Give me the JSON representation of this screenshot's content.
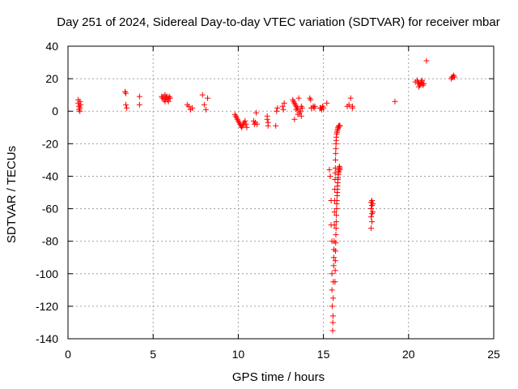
{
  "chart_data": {
    "type": "scatter",
    "title": "Day 251 of 2024, Sidereal Day-to-day VTEC variation (SDTVAR) for receiver mbar",
    "xlabel": "GPS time / hours",
    "ylabel": "SDTVAR / TECUs",
    "xlim": [
      0,
      25
    ],
    "ylim": [
      -140,
      40
    ],
    "xticks": [
      0,
      5,
      10,
      15,
      20,
      25
    ],
    "yticks": [
      40,
      20,
      0,
      -20,
      -40,
      -60,
      -80,
      -100,
      -120,
      -140
    ],
    "grid": true,
    "marker": "+",
    "marker_color": "#ff0000",
    "series": [
      {
        "name": "SDTVAR",
        "x": [
          0.6,
          0.6,
          0.65,
          0.65,
          0.7,
          0.7,
          0.7,
          0.75,
          3.35,
          3.4,
          3.4,
          3.45,
          4.2,
          4.2,
          5.5,
          5.55,
          5.6,
          5.65,
          5.7,
          5.75,
          5.8,
          5.85,
          5.9,
          5.95,
          6.0,
          5.7,
          5.9,
          7.0,
          7.1,
          7.2,
          7.3,
          7.9,
          8.0,
          8.1,
          8.2,
          9.8,
          9.85,
          9.9,
          9.95,
          10.0,
          10.05,
          10.1,
          10.15,
          10.2,
          10.25,
          10.3,
          10.35,
          10.4,
          10.45,
          10.5,
          10.9,
          10.95,
          11.0,
          11.05,
          11.1,
          11.7,
          11.7,
          11.75,
          11.75,
          12.2,
          12.25,
          12.3,
          12.6,
          12.65,
          12.7,
          13.2,
          13.25,
          13.3,
          13.35,
          13.4,
          13.45,
          13.5,
          13.55,
          13.6,
          13.65,
          13.7,
          13.75,
          13.3,
          13.4,
          13.5,
          13.7,
          14.2,
          14.25,
          14.3,
          14.3,
          14.4,
          14.45,
          14.5,
          14.8,
          14.85,
          14.9,
          14.95,
          15.0,
          15.2,
          15.35,
          15.4,
          15.45,
          15.45,
          15.5,
          15.5,
          15.5,
          15.52,
          15.54,
          15.55,
          15.56,
          15.57,
          15.58,
          15.6,
          15.61,
          15.62,
          15.63,
          15.64,
          15.65,
          15.66,
          15.67,
          15.68,
          15.69,
          15.7,
          15.71,
          15.72,
          15.73,
          15.74,
          15.75,
          15.76,
          15.78,
          15.8,
          15.82,
          15.84,
          15.86,
          15.88,
          15.9,
          15.92,
          15.94,
          15.95,
          15.96,
          15.97,
          15.68,
          15.69,
          15.7,
          15.71,
          15.72,
          15.73,
          15.74,
          15.75,
          15.76,
          15.77,
          15.78,
          15.79,
          15.8,
          15.81,
          15.82,
          15.83,
          15.84,
          15.85,
          15.86,
          15.87,
          15.88,
          15.89,
          15.9,
          15.91,
          15.92,
          15.93,
          15.94,
          15.95,
          15.96,
          15.97,
          16.4,
          16.5,
          16.6,
          16.7,
          16.7,
          17.8,
          17.8,
          17.8,
          17.8,
          17.85,
          17.85,
          17.85,
          17.85,
          17.9,
          17.9,
          19.2,
          20.4,
          20.5,
          20.55,
          20.6,
          20.65,
          20.7,
          20.75,
          20.8,
          20.85,
          20.9,
          20.6,
          20.8,
          21.05,
          22.5,
          22.55,
          22.6,
          22.65,
          22.7
        ],
        "y": [
          7,
          5,
          3,
          1,
          6,
          2,
          0,
          4,
          12,
          11,
          4,
          2,
          9,
          4,
          9,
          8,
          9,
          7,
          10,
          8,
          9,
          7,
          8,
          9,
          8,
          6,
          6,
          4,
          3,
          1,
          2,
          10,
          4,
          1,
          8,
          -2,
          -3,
          -4,
          -5,
          -6,
          -7,
          -8,
          -9,
          -10,
          -9,
          -8,
          -7,
          -6,
          -8,
          -10,
          -6,
          -8,
          -7,
          -1,
          -8,
          -3,
          -5,
          -7,
          -9,
          -9,
          0,
          2,
          3,
          1,
          5,
          7,
          6,
          5,
          4,
          3,
          2,
          1,
          8,
          -1,
          0,
          -3,
          2,
          -5,
          1,
          -2,
          3,
          8,
          7,
          2,
          2,
          3,
          2,
          3,
          2,
          2,
          1,
          3,
          2,
          5,
          -36,
          -40,
          -55,
          -70,
          -80,
          -100,
          -110,
          -120,
          -135,
          -130,
          -126,
          -115,
          -105,
          -95,
          -90,
          -85,
          -80,
          -70,
          -62,
          -55,
          -48,
          -42,
          -38,
          -35,
          -30,
          -26,
          -23,
          -20,
          -18,
          -16,
          -14,
          -13,
          -12,
          -11,
          -10,
          -10,
          -9,
          -9,
          -9,
          -9,
          -9,
          -9,
          -105,
          -98,
          -92,
          -86,
          -81,
          -76,
          -72,
          -68,
          -64,
          -60,
          -57,
          -55,
          -52,
          -50,
          -48,
          -46,
          -44,
          -42,
          -41,
          -39,
          -38,
          -37,
          -36,
          -36,
          -35,
          -35,
          -34,
          -35,
          -35,
          -36,
          3,
          4,
          8,
          3,
          2,
          -56,
          -60,
          -65,
          -72,
          -55,
          -58,
          -63,
          -68,
          -57,
          -62,
          6,
          18,
          19,
          18,
          17,
          16,
          17,
          18,
          17,
          16,
          17,
          15,
          19,
          31,
          20,
          21,
          21,
          22,
          21
        ]
      }
    ]
  }
}
